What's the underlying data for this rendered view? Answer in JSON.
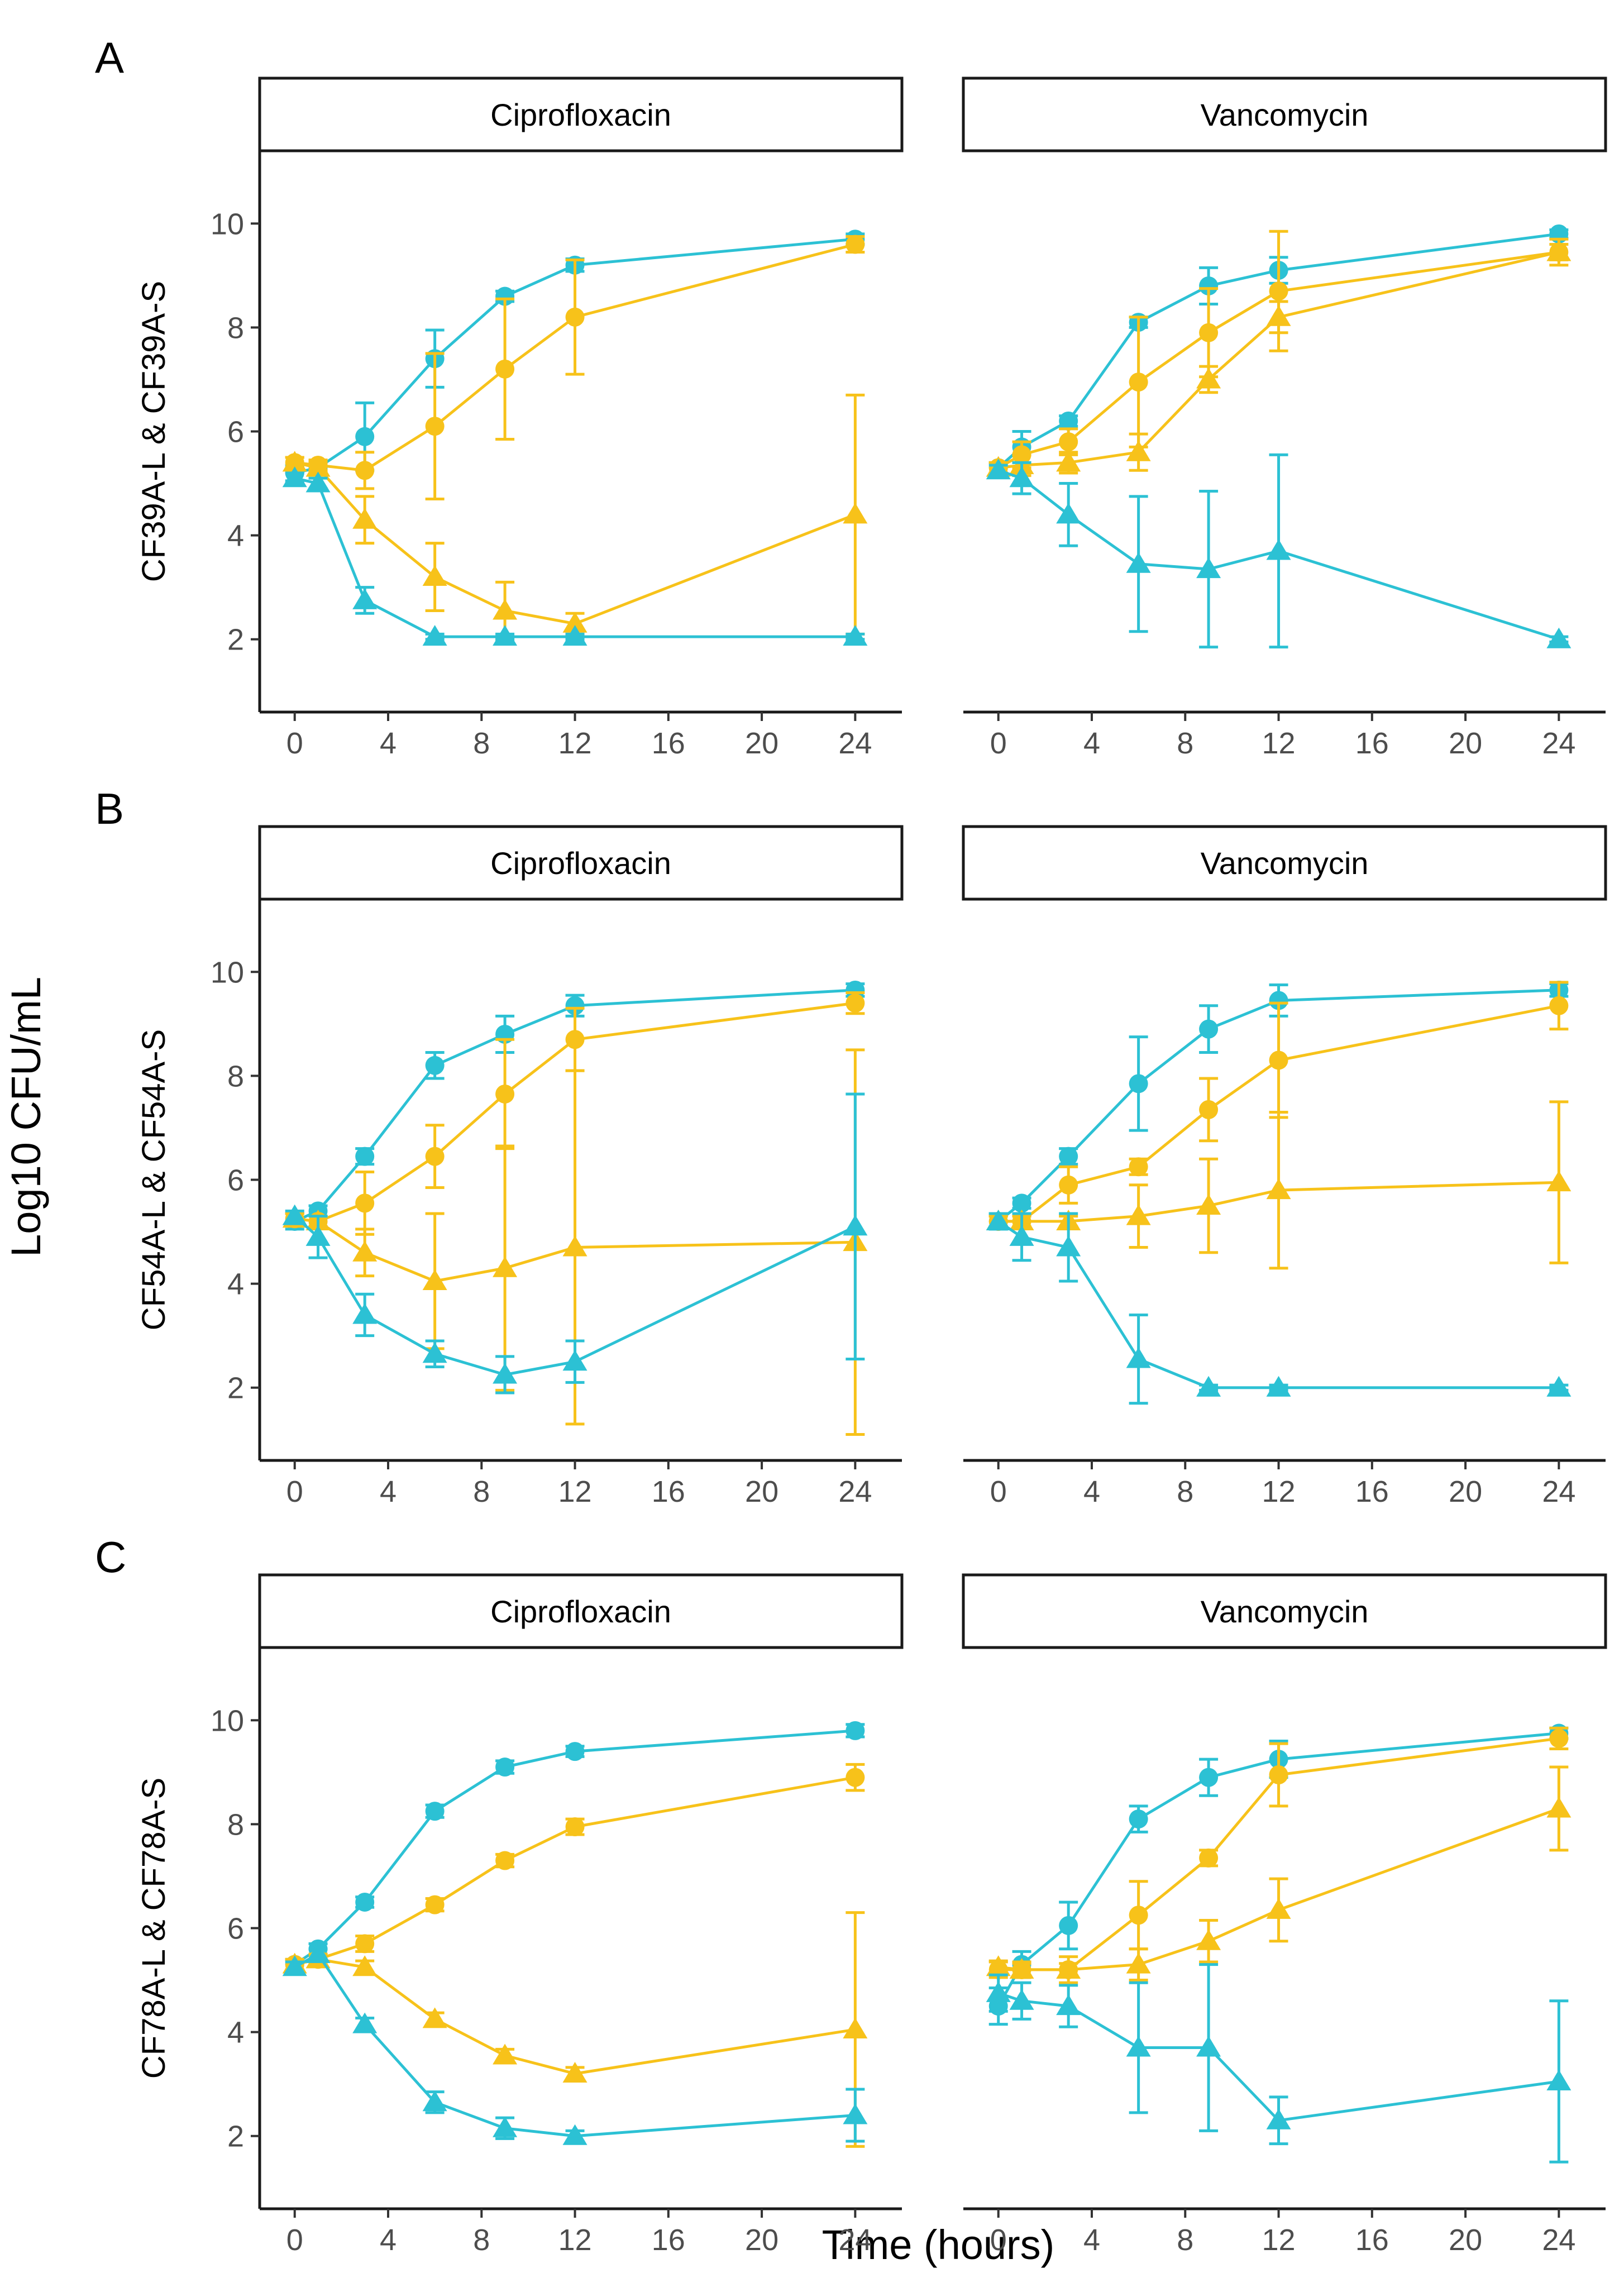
{
  "figure": {
    "y_label": "Log10 CFU/mL",
    "x_label": "Time (hours)"
  },
  "chart_data": {
    "type": "line",
    "title": "",
    "xlabel": "Time (hours)",
    "ylabel": "Log10 CFU/mL",
    "x": [
      0,
      1,
      3,
      6,
      9,
      12,
      24
    ],
    "xlim": [
      -1.5,
      26
    ],
    "xticks": [
      0,
      4,
      8,
      12,
      16,
      20,
      24
    ],
    "ylim": [
      0.6,
      11.4
    ],
    "yticks": [
      2,
      4,
      6,
      8,
      10
    ],
    "grid": false,
    "legend": "none",
    "colors": {
      "L": "#2cc1d4",
      "S": "#f7c21a"
    },
    "series_styles": [
      {
        "name": "L-circle",
        "color": "#2cc1d4",
        "marker": "circle"
      },
      {
        "name": "S-circle",
        "color": "#f7c21a",
        "marker": "circle"
      },
      {
        "name": "S-triangle",
        "color": "#f7c21a",
        "marker": "triangle"
      },
      {
        "name": "L-triangle",
        "color": "#2cc1d4",
        "marker": "triangle"
      }
    ],
    "rows": [
      {
        "letter": "A",
        "ylabel": "CF39A-L & CF39A-S",
        "panels": [
          {
            "strip": "Ciprofloxacin",
            "series": [
              {
                "values": [
                  5.2,
                  5.3,
                  5.9,
                  7.4,
                  8.6,
                  9.2,
                  9.7
                ],
                "errors": [
                  0.15,
                  0.1,
                  0.65,
                  0.55,
                  0.1,
                  0.12,
                  0.1
                ]
              },
              {
                "values": [
                  5.4,
                  5.35,
                  5.25,
                  6.1,
                  7.2,
                  8.2,
                  9.6
                ],
                "errors": [
                  0.1,
                  0.1,
                  0.35,
                  1.4,
                  1.35,
                  1.1,
                  0.15
                ]
              },
              {
                "values": [
                  5.4,
                  5.3,
                  4.3,
                  3.2,
                  2.55,
                  2.3,
                  4.4
                ],
                "errors": [
                  0.1,
                  0.1,
                  0.45,
                  0.65,
                  0.55,
                  0.2,
                  2.3
                ]
              },
              {
                "values": [
                  5.1,
                  5.0,
                  2.75,
                  2.05,
                  2.05,
                  2.05,
                  2.05
                ],
                "errors": [
                  0.1,
                  0.1,
                  0.25,
                  0.05,
                  0.05,
                  0.05,
                  0.05
                ]
              }
            ]
          },
          {
            "strip": "Vancomycin",
            "series": [
              {
                "values": [
                  5.3,
                  5.7,
                  6.2,
                  8.1,
                  8.8,
                  9.1,
                  9.8
                ],
                "errors": [
                  0.1,
                  0.3,
                  0.1,
                  0.1,
                  0.35,
                  0.25,
                  0.08
                ]
              },
              {
                "values": [
                  5.3,
                  5.55,
                  5.8,
                  6.95,
                  7.9,
                  8.7,
                  9.45
                ],
                "errors": [
                  0.1,
                  0.25,
                  0.25,
                  1.25,
                  0.85,
                  1.15,
                  0.15
                ]
              },
              {
                "values": [
                  5.3,
                  5.35,
                  5.4,
                  5.6,
                  7.0,
                  8.2,
                  9.45
                ],
                "errors": [
                  0.1,
                  0.2,
                  0.2,
                  0.35,
                  0.25,
                  0.3,
                  0.25
                ]
              },
              {
                "values": [
                  5.25,
                  5.1,
                  4.4,
                  3.45,
                  3.35,
                  3.7,
                  2.0
                ],
                "errors": [
                  0.1,
                  0.3,
                  0.6,
                  1.3,
                  1.5,
                  1.85,
                  0.05
                ]
              }
            ]
          }
        ]
      },
      {
        "letter": "B",
        "ylabel": "CF54A-L & CF54A-S",
        "panels": [
          {
            "strip": "Ciprofloxacin",
            "series": [
              {
                "values": [
                  5.2,
                  5.4,
                  6.45,
                  8.2,
                  8.8,
                  9.35,
                  9.65
                ],
                "errors": [
                  0.15,
                  0.1,
                  0.15,
                  0.25,
                  0.35,
                  0.2,
                  0.12
                ]
              },
              {
                "values": [
                  5.25,
                  5.2,
                  5.55,
                  6.45,
                  7.65,
                  8.7,
                  9.4
                ],
                "errors": [
                  0.1,
                  0.1,
                  0.6,
                  0.6,
                  1.05,
                  0.6,
                  0.2
                ]
              },
              {
                "values": [
                  5.25,
                  5.2,
                  4.6,
                  4.05,
                  4.3,
                  4.7,
                  4.8
                ],
                "errors": [
                  0.1,
                  0.1,
                  0.45,
                  1.3,
                  2.35,
                  3.4,
                  3.7
                ]
              },
              {
                "values": [
                  5.3,
                  4.9,
                  3.4,
                  2.65,
                  2.25,
                  2.5,
                  5.1
                ],
                "errors": [
                  0.1,
                  0.4,
                  0.4,
                  0.25,
                  0.35,
                  0.4,
                  2.55
                ]
              }
            ]
          },
          {
            "strip": "Vancomycin",
            "series": [
              {
                "values": [
                  5.2,
                  5.55,
                  6.45,
                  7.85,
                  8.9,
                  9.45,
                  9.65
                ],
                "errors": [
                  0.15,
                  0.1,
                  0.15,
                  0.9,
                  0.45,
                  0.3,
                  0.12
                ]
              },
              {
                "values": [
                  5.2,
                  5.2,
                  5.9,
                  6.25,
                  7.35,
                  8.3,
                  9.35
                ],
                "errors": [
                  0.1,
                  0.1,
                  0.35,
                  0.15,
                  0.6,
                  1.1,
                  0.45
                ]
              },
              {
                "values": [
                  5.2,
                  5.2,
                  5.2,
                  5.3,
                  5.5,
                  5.8,
                  5.95
                ],
                "errors": [
                  0.1,
                  0.1,
                  0.1,
                  0.6,
                  0.9,
                  1.5,
                  1.55
                ]
              },
              {
                "values": [
                  5.2,
                  4.9,
                  4.7,
                  2.55,
                  2.0,
                  2.0,
                  2.0
                ],
                "errors": [
                  0.15,
                  0.45,
                  0.65,
                  0.85,
                  0.05,
                  0.05,
                  0.05
                ]
              }
            ]
          }
        ]
      },
      {
        "letter": "C",
        "ylabel": "CF78A-L & CF78A-S",
        "panels": [
          {
            "strip": "Ciprofloxacin",
            "series": [
              {
                "values": [
                  5.3,
                  5.6,
                  6.5,
                  8.25,
                  9.1,
                  9.4,
                  9.8
                ],
                "errors": [
                  0.1,
                  0.1,
                  0.1,
                  0.12,
                  0.12,
                  0.1,
                  0.12
                ]
              },
              {
                "values": [
                  5.3,
                  5.4,
                  5.7,
                  6.45,
                  7.3,
                  7.95,
                  8.9
                ],
                "errors": [
                  0.1,
                  0.1,
                  0.15,
                  0.12,
                  0.12,
                  0.15,
                  0.25
                ]
              },
              {
                "values": [
                  5.3,
                  5.4,
                  5.25,
                  4.25,
                  3.55,
                  3.2,
                  4.05
                ],
                "errors": [
                  0.1,
                  0.1,
                  0.12,
                  0.12,
                  0.12,
                  0.12,
                  2.25
                ]
              },
              {
                "values": [
                  5.25,
                  5.5,
                  4.15,
                  2.65,
                  2.15,
                  2.0,
                  2.4
                ],
                "errors": [
                  0.1,
                  0.1,
                  0.12,
                  0.2,
                  0.2,
                  0.1,
                  0.5
                ]
              }
            ]
          },
          {
            "strip": "Vancomycin",
            "series": [
              {
                "values": [
                  4.5,
                  5.3,
                  6.05,
                  8.1,
                  8.9,
                  9.25,
                  9.75
                ],
                "errors": [
                  0.35,
                  0.25,
                  0.45,
                  0.25,
                  0.35,
                  0.35,
                  0.1
                ]
              },
              {
                "values": [
                  5.2,
                  5.2,
                  5.2,
                  6.25,
                  7.35,
                  8.95,
                  9.65
                ],
                "errors": [
                  0.15,
                  0.15,
                  0.25,
                  0.65,
                  0.15,
                  0.6,
                  0.2
                ]
              },
              {
                "values": [
                  5.25,
                  5.2,
                  5.2,
                  5.3,
                  5.75,
                  6.35,
                  8.3
                ],
                "errors": [
                  0.12,
                  0.12,
                  0.12,
                  0.3,
                  0.4,
                  0.6,
                  0.8
                ]
              },
              {
                "values": [
                  4.75,
                  4.6,
                  4.5,
                  3.7,
                  3.7,
                  2.3,
                  3.05
                ],
                "errors": [
                  0.35,
                  0.35,
                  0.4,
                  1.25,
                  1.6,
                  0.45,
                  1.55
                ]
              }
            ]
          }
        ]
      }
    ]
  }
}
